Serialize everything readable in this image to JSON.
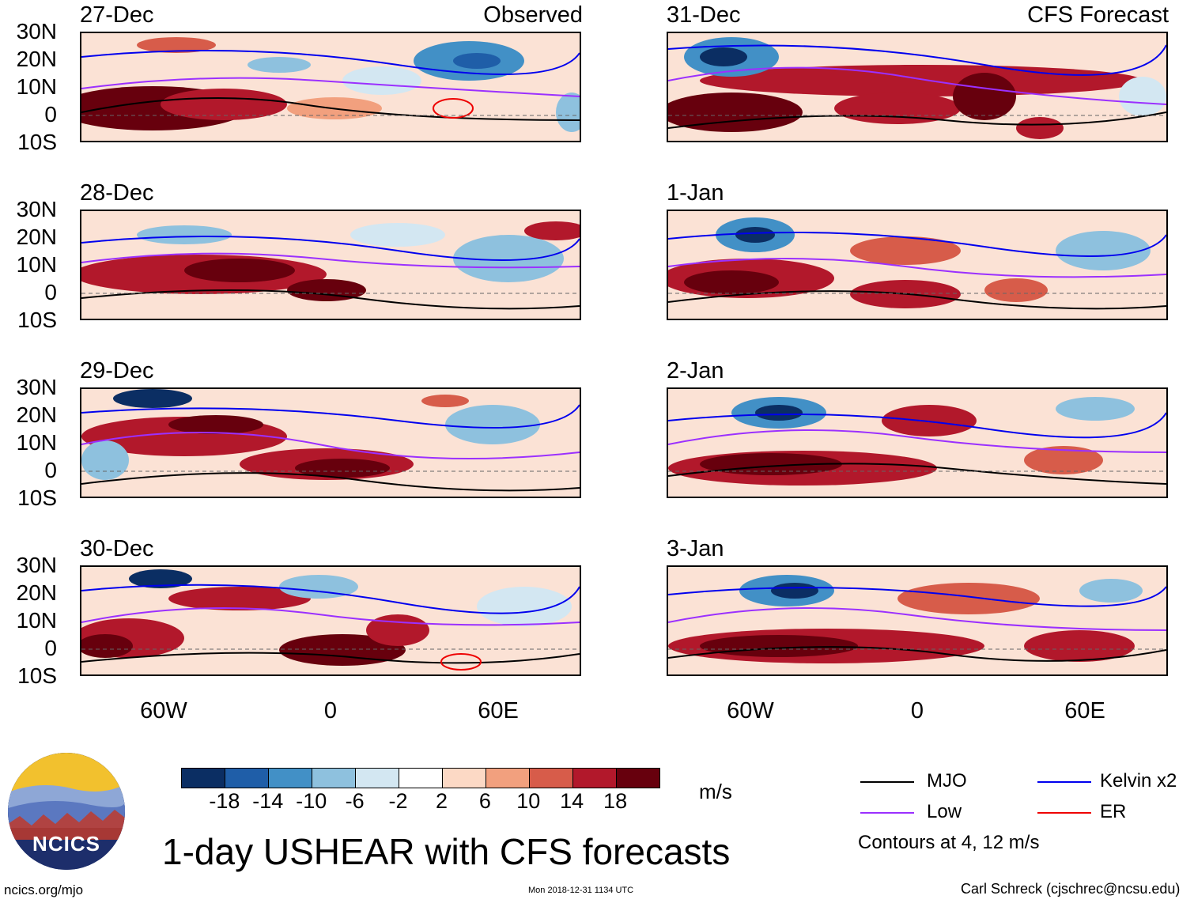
{
  "figure_title": "1-day USHEAR with CFS forecasts",
  "left_column_label": "Observed",
  "right_column_label": "CFS Forecast",
  "panels": [
    {
      "date": "27-Dec"
    },
    {
      "date": "28-Dec"
    },
    {
      "date": "29-Dec"
    },
    {
      "date": "30-Dec"
    },
    {
      "date": "31-Dec"
    },
    {
      "date": "1-Jan"
    },
    {
      "date": "2-Jan"
    },
    {
      "date": "3-Jan"
    }
  ],
  "lat_labels": [
    "30N",
    "20N",
    "10N",
    "0",
    "10S"
  ],
  "lon_labels": [
    "60W",
    "0",
    "60E"
  ],
  "colorbar": {
    "unit": "m/s",
    "tick_labels": [
      "-18",
      "-14",
      "-10",
      "-6",
      "-2",
      "2",
      "6",
      "10",
      "14",
      "18"
    ],
    "colors": [
      "#0b2e63",
      "#1f5ea8",
      "#4290c6",
      "#8ec1de",
      "#d3e7f2",
      "#ffffff",
      "#fcd9c5",
      "#f2a07e",
      "#d75c4a",
      "#b2182b",
      "#67000d"
    ]
  },
  "legend": {
    "items": [
      {
        "label": "MJO",
        "color": "#000000"
      },
      {
        "label": "Kelvin x2",
        "color": "#0000ee"
      },
      {
        "label": "Low",
        "color": "#9b30ff"
      },
      {
        "label": "ER",
        "color": "#ee0000"
      }
    ],
    "note": "Contours at 4, 12 m/s"
  },
  "footer": {
    "site": "ncics.org/mjo",
    "timestamp": "Mon 2018-12-31 1134 UTC",
    "author": "Carl Schreck (cjschrec@ncsu.edu)"
  },
  "logo": {
    "text": "NCICS"
  }
}
